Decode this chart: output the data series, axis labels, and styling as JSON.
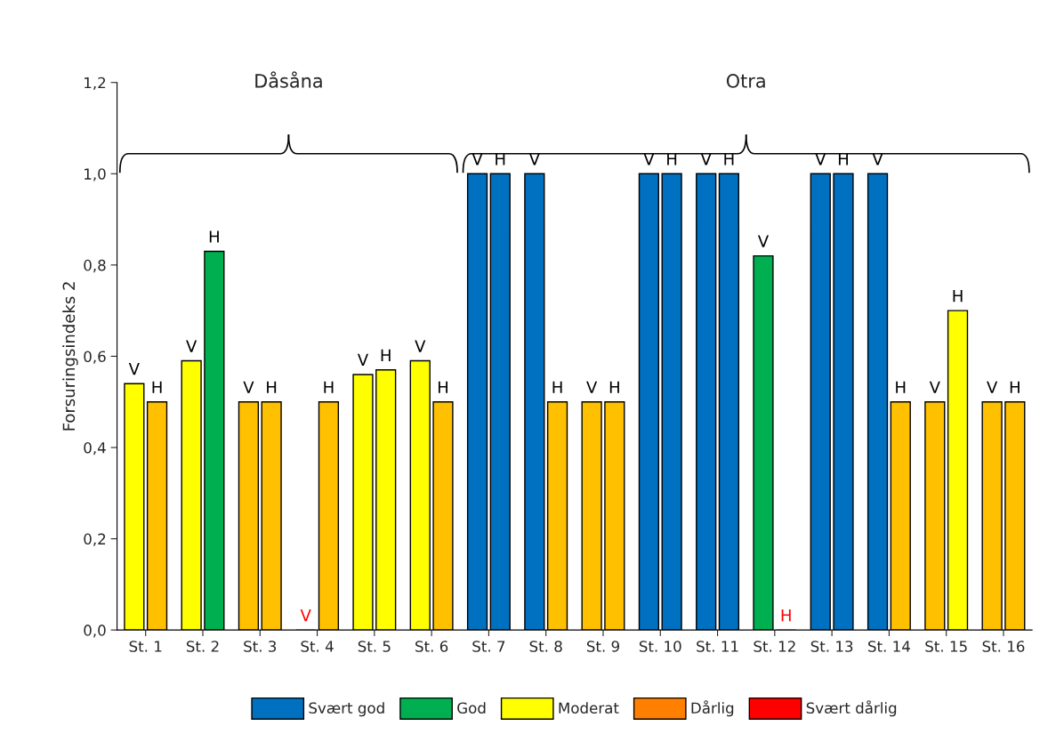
{
  "chart_data": {
    "type": "bar",
    "ylabel": "Forsuringsindeks 2",
    "categories": [
      "St. 1",
      "St. 2",
      "St. 3",
      "St. 4",
      "St. 5",
      "St. 6",
      "St. 7",
      "St. 8",
      "St. 9",
      "St. 10",
      "St. 11",
      "St. 12",
      "St. 13",
      "St. 14",
      "St. 15",
      "St. 16"
    ],
    "series": [
      {
        "values": [
          0.54,
          0.59,
          0.5,
          0,
          0.56,
          0.59,
          1,
          1,
          0.5,
          1,
          1,
          0.82,
          1,
          1,
          0.5,
          0.5
        ],
        "colors": [
          "#ffff00",
          "#ffff00",
          "#ffc000",
          "#ff0000",
          "#ffff00",
          "#ffff00",
          "#0070c0",
          "#0070c0",
          "#ffc000",
          "#0070c0",
          "#0070c0",
          "#00b050",
          "#0070c0",
          "#0070c0",
          "#ffc000",
          "#ffc000"
        ],
        "value_labels": [
          "V",
          "V",
          "V",
          "V",
          "V",
          "V",
          "V",
          "V",
          "V",
          "V",
          "V",
          "V",
          "V",
          "V",
          "V",
          "V"
        ]
      },
      {
        "values": [
          0.5,
          0.83,
          0.5,
          0.5,
          0.57,
          0.5,
          1,
          0.5,
          0.5,
          1,
          1,
          0,
          1,
          0.5,
          0.7,
          0.5
        ],
        "colors": [
          "#ffc000",
          "#00b050",
          "#ffc000",
          "#ffc000",
          "#ffff00",
          "#ffc000",
          "#0070c0",
          "#ffc000",
          "#ffc000",
          "#0070c0",
          "#0070c0",
          "#ff0000",
          "#0070c0",
          "#ffc000",
          "#ffff00",
          "#ffc000"
        ],
        "value_labels": [
          "H",
          "H",
          "H",
          "H",
          "H",
          "H",
          "H",
          "H",
          "H",
          "H",
          "H",
          "H",
          "H",
          "H",
          "H",
          "H"
        ]
      },
      {
        "name": "Svært god",
        "color": "#0070c0",
        "values": [
          null,
          null,
          null,
          null,
          null,
          null,
          null,
          null,
          null,
          null,
          null,
          null,
          null,
          null,
          null,
          null
        ]
      },
      {
        "name": "God",
        "color": "#00b050",
        "values": [
          null,
          null,
          null,
          null,
          null,
          null,
          null,
          null,
          null,
          null,
          null,
          null,
          null,
          null,
          null,
          null
        ]
      },
      {
        "name": "Moderat",
        "color": "#ffff00",
        "values": [
          null,
          null,
          null,
          null,
          null,
          null,
          null,
          null,
          null,
          null,
          null,
          null,
          null,
          null,
          null,
          null
        ]
      },
      {
        "name": "Dårlig",
        "color": "#ff7f00",
        "values": [
          null,
          null,
          null,
          null,
          null,
          null,
          null,
          null,
          null,
          null,
          null,
          null,
          null,
          null,
          null,
          null
        ]
      },
      {
        "name": "Svært dårlig",
        "color": "#ff0000",
        "values": [
          null,
          null,
          null,
          null,
          null,
          null,
          null,
          null,
          null,
          null,
          null,
          null,
          null,
          null,
          null,
          null
        ]
      }
    ],
    "annotations": [
      "Dåsåna",
      "Otra"
    ],
    "ylim": [
      0,
      1.2
    ],
    "yticks": [
      {
        "value": 0,
        "label": "0,0"
      },
      {
        "value": 0.2,
        "label": "0,2"
      },
      {
        "value": 0.4,
        "label": "0,4"
      },
      {
        "value": 0.6,
        "label": "0,6"
      },
      {
        "value": 0.8,
        "label": "0,8"
      },
      {
        "value": 1.0,
        "label": "1,0"
      },
      {
        "value": 1.2,
        "label": "1,2"
      }
    ],
    "grid": false,
    "legend": "bottom"
  }
}
